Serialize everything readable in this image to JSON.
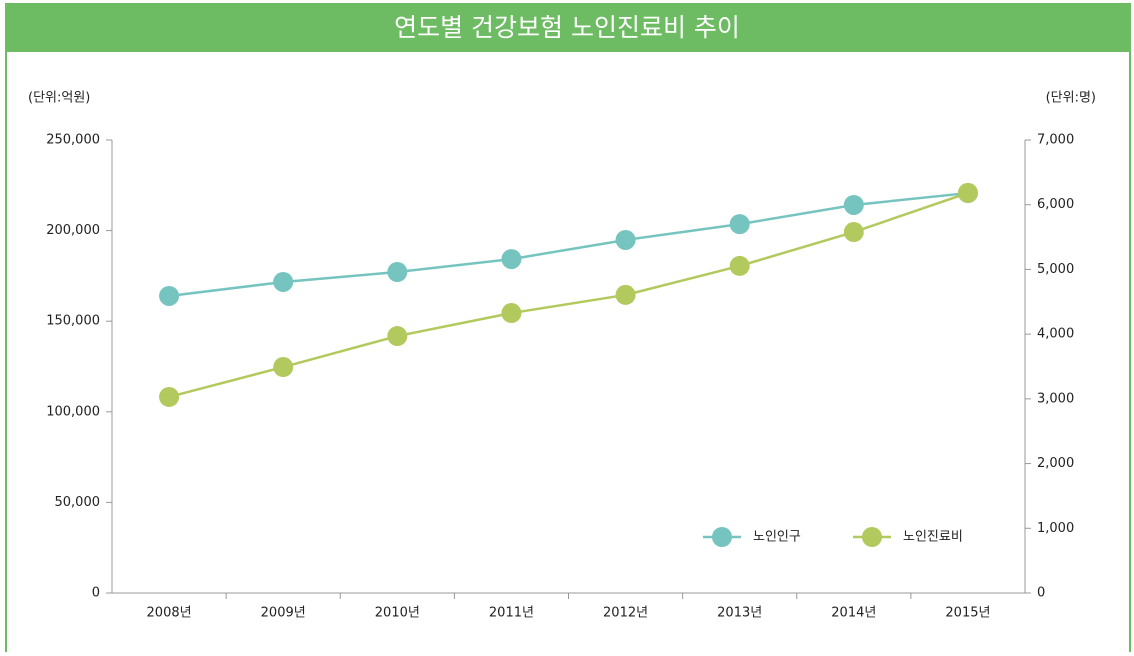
{
  "chart_data": {
    "type": "line",
    "title": "연도별 건강보험 노인진료비 추이",
    "ylabel": "(단위:억원)",
    "y2label": "(단위:명)",
    "categories": [
      "2008년",
      "2009년",
      "2010년",
      "2011년",
      "2012년",
      "2013년",
      "2014년",
      "2015년"
    ],
    "ylim": [
      0,
      250000
    ],
    "yticks": [
      0,
      {
        "value": 50000,
        "label": "50,000"
      },
      {
        "value": 100000,
        "label": "100,000"
      },
      {
        "value": 150000,
        "label": "150,000"
      },
      {
        "value": 200000,
        "label": "200,000"
      },
      {
        "value": 250000,
        "label": "250,000"
      }
    ],
    "y2lim": [
      0,
      7000
    ],
    "y2ticks": [
      0,
      {
        "value": 1000,
        "label": "1,000"
      },
      {
        "value": 2000,
        "label": "2,000"
      },
      {
        "value": 3000,
        "label": "3,000"
      },
      {
        "value": 4000,
        "label": "4,000"
      },
      {
        "value": 5000,
        "label": "5,000"
      },
      {
        "value": 6000,
        "label": "6,000"
      },
      {
        "value": 7000,
        "label": "7,000"
      }
    ],
    "series": [
      {
        "name": "노인인구",
        "color": "#76c4c0",
        "axis": "y2",
        "values": [
          4590,
          4806,
          4960,
          5160,
          5455,
          5700,
          5996,
          6180
        ]
      },
      {
        "name": "노인진료비",
        "color": "#b2c95d",
        "values": [
          108200,
          124700,
          141800,
          154500,
          164500,
          180500,
          199200,
          220800
        ]
      }
    ]
  }
}
